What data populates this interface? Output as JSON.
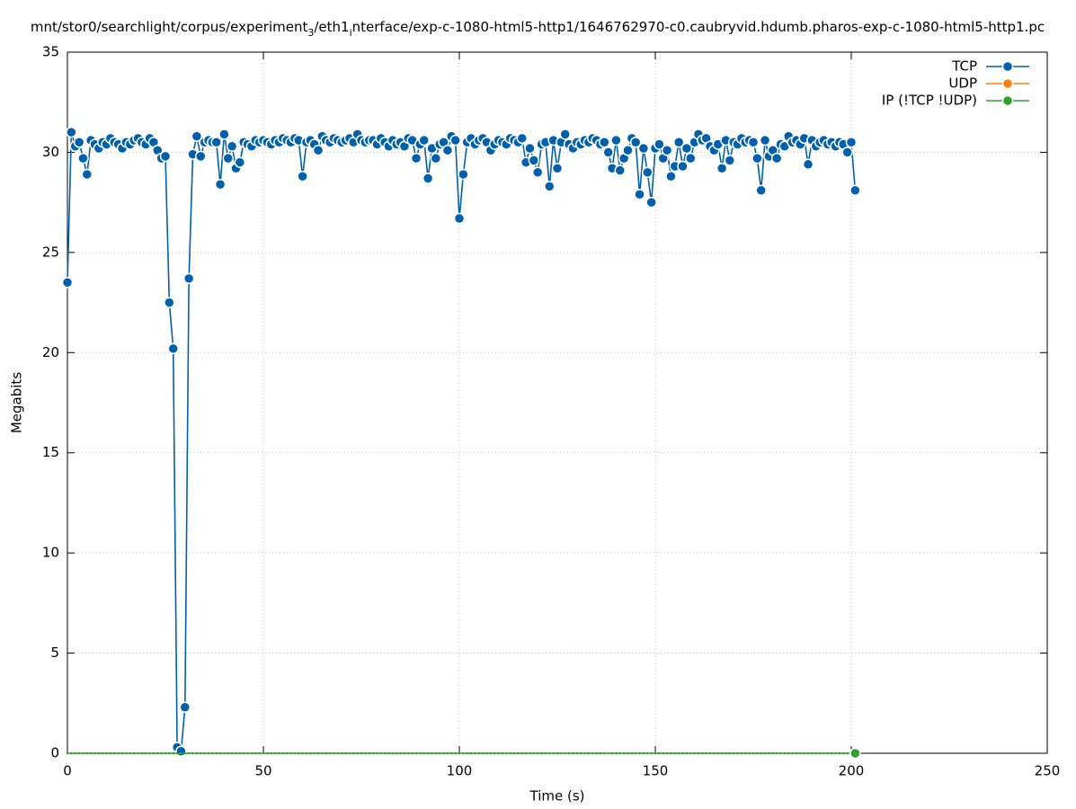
{
  "chart_data": {
    "type": "line",
    "title": [
      "mnt/stor0/searchlight/corpus/experiment",
      "3",
      "/eth1",
      "i",
      "nterface/exp-c-1080-html5-http1/1646762970-c0.caubryvid.hdumb.pharos-exp-c-1080-html5-http1.pc"
    ],
    "xlabel": "Time (s)",
    "ylabel": "Megabits",
    "xlim": [
      0,
      250
    ],
    "xticks": [
      0,
      50,
      100,
      150,
      200,
      250
    ],
    "ylim": [
      0,
      35
    ],
    "yticks": [
      0,
      5,
      10,
      15,
      20,
      25,
      30,
      35
    ],
    "grid": true,
    "legend": "top-right",
    "x": [
      0,
      1,
      2,
      3,
      4,
      5,
      6,
      7,
      8,
      9,
      10,
      11,
      12,
      13,
      14,
      15,
      16,
      17,
      18,
      19,
      20,
      21,
      22,
      23,
      24,
      25,
      26,
      27,
      28,
      29,
      30,
      31,
      32,
      33,
      34,
      35,
      36,
      37,
      38,
      39,
      40,
      41,
      42,
      43,
      44,
      45,
      46,
      47,
      48,
      49,
      50,
      51,
      52,
      53,
      54,
      55,
      56,
      57,
      58,
      59,
      60,
      61,
      62,
      63,
      64,
      65,
      66,
      67,
      68,
      69,
      70,
      71,
      72,
      73,
      74,
      75,
      76,
      77,
      78,
      79,
      80,
      81,
      82,
      83,
      84,
      85,
      86,
      87,
      88,
      89,
      90,
      91,
      92,
      93,
      94,
      95,
      96,
      97,
      98,
      99,
      100,
      101,
      102,
      103,
      104,
      105,
      106,
      107,
      108,
      109,
      110,
      111,
      112,
      113,
      114,
      115,
      116,
      117,
      118,
      119,
      120,
      121,
      122,
      123,
      124,
      125,
      126,
      127,
      128,
      129,
      130,
      131,
      132,
      133,
      134,
      135,
      136,
      137,
      138,
      139,
      140,
      141,
      142,
      143,
      144,
      145,
      146,
      147,
      148,
      149,
      150,
      151,
      152,
      153,
      154,
      155,
      156,
      157,
      158,
      159,
      160,
      161,
      162,
      163,
      164,
      165,
      166,
      167,
      168,
      169,
      170,
      171,
      172,
      173,
      174,
      175,
      176,
      177,
      178,
      179,
      180,
      181,
      182,
      183,
      184,
      185,
      186,
      187,
      188,
      189,
      190,
      191,
      192,
      193,
      194,
      195,
      196,
      197,
      198,
      199,
      200,
      201
    ],
    "series": [
      {
        "name": "TCP",
        "color": "#0060ad",
        "values": [
          23.5,
          31.0,
          30.3,
          30.5,
          29.7,
          28.9,
          30.6,
          30.4,
          30.2,
          30.5,
          30.4,
          30.7,
          30.5,
          30.4,
          30.2,
          30.5,
          30.4,
          30.6,
          30.7,
          30.5,
          30.4,
          30.7,
          30.5,
          30.1,
          29.7,
          29.8,
          22.5,
          20.2,
          0.3,
          0.1,
          2.3,
          23.7,
          29.9,
          30.8,
          29.8,
          30.5,
          30.6,
          30.5,
          30.5,
          28.4,
          30.9,
          29.7,
          30.3,
          29.2,
          29.5,
          30.5,
          30.4,
          30.3,
          30.6,
          30.5,
          30.6,
          30.5,
          30.4,
          30.6,
          30.5,
          30.7,
          30.6,
          30.5,
          30.7,
          30.6,
          28.8,
          30.5,
          30.6,
          30.4,
          30.1,
          30.8,
          30.6,
          30.5,
          30.7,
          30.6,
          30.5,
          30.6,
          30.7,
          30.5,
          30.9,
          30.6,
          30.5,
          30.6,
          30.6,
          30.4,
          30.7,
          30.5,
          30.3,
          30.6,
          30.4,
          30.5,
          30.3,
          30.7,
          30.6,
          29.7,
          30.4,
          30.6,
          28.7,
          30.2,
          29.7,
          30.4,
          30.5,
          30.1,
          30.8,
          30.6,
          26.7,
          28.9,
          30.5,
          30.7,
          30.4,
          30.6,
          30.7,
          30.5,
          30.1,
          30.4,
          30.6,
          30.5,
          30.4,
          30.7,
          30.6,
          30.5,
          30.7,
          29.5,
          30.2,
          29.6,
          29.0,
          30.4,
          30.5,
          28.3,
          30.6,
          29.2,
          30.5,
          30.9,
          30.4,
          30.2,
          30.5,
          30.4,
          30.6,
          30.5,
          30.7,
          30.6,
          30.4,
          30.5,
          30.0,
          29.2,
          30.6,
          29.1,
          29.7,
          30.1,
          30.7,
          30.5,
          27.9,
          30.2,
          29.0,
          27.5,
          30.2,
          30.4,
          29.7,
          30.1,
          28.8,
          29.3,
          30.5,
          29.3,
          30.2,
          29.7,
          30.5,
          30.9,
          30.6,
          30.7,
          30.3,
          30.1,
          30.4,
          29.2,
          30.6,
          29.6,
          30.5,
          30.4,
          30.7,
          30.5,
          30.6,
          30.5,
          29.7,
          28.1,
          30.6,
          29.8,
          30.1,
          29.7,
          30.4,
          30.3,
          30.8,
          30.5,
          30.6,
          30.4,
          30.7,
          29.4,
          30.6,
          30.3,
          30.5,
          30.6,
          30.4,
          30.5,
          30.3,
          30.5,
          30.4,
          30.0,
          30.5,
          28.1
        ]
      },
      {
        "name": "UDP",
        "color": "#ff7f0e",
        "values": [
          null,
          null,
          null,
          null,
          null,
          null,
          null,
          null,
          null,
          null,
          null,
          null,
          null,
          null,
          null,
          null,
          null,
          null,
          null,
          null,
          null,
          null,
          null,
          null,
          null,
          null,
          null,
          null,
          null,
          null,
          null,
          null,
          null,
          null,
          null,
          null,
          null,
          null,
          null,
          null,
          null,
          null,
          null,
          null,
          null,
          null,
          null,
          null,
          null,
          null,
          null,
          null,
          null,
          null,
          null,
          null,
          null,
          null,
          null,
          null,
          null,
          null,
          null,
          null,
          null,
          null,
          null,
          null,
          null,
          null,
          null,
          null,
          null,
          null,
          null,
          null,
          null,
          null,
          null,
          null,
          null,
          null,
          null,
          null,
          null,
          null,
          null,
          null,
          null,
          null,
          null,
          null,
          null,
          null,
          null,
          null,
          null,
          null,
          null,
          null,
          null,
          null,
          null,
          null,
          null,
          null,
          null,
          null,
          null,
          null,
          null,
          null,
          null,
          null,
          null,
          null,
          null,
          null,
          null,
          null,
          null,
          null,
          null,
          null,
          null,
          null,
          null,
          null,
          null,
          null,
          null,
          null,
          null,
          null,
          null,
          null,
          null,
          null,
          null,
          null,
          null,
          null,
          null,
          null,
          null,
          null,
          null,
          null,
          null,
          null,
          null,
          null,
          null,
          null,
          null,
          null,
          null,
          null,
          null,
          null,
          null,
          null,
          null,
          null,
          null,
          null,
          null,
          null,
          null,
          null,
          null,
          null,
          null,
          null,
          null,
          null,
          null,
          null,
          null,
          null,
          null,
          null,
          null,
          null,
          null,
          null,
          null,
          null,
          null,
          null,
          null,
          null,
          null,
          null,
          null,
          null,
          null,
          null,
          null,
          null,
          null,
          null
        ]
      },
      {
        "name": "IP (!TCP  !UDP)",
        "color": "#2ca02c",
        "values": [
          0,
          0,
          0,
          0,
          0,
          0,
          0,
          0,
          0,
          0,
          0,
          0,
          0,
          0,
          0,
          0,
          0,
          0,
          0,
          0,
          0,
          0,
          0,
          0,
          0,
          0,
          0,
          0,
          0,
          0,
          0,
          0,
          0,
          0,
          0,
          0,
          0,
          0,
          0,
          0,
          0,
          0,
          0,
          0,
          0,
          0,
          0,
          0,
          0,
          0,
          0,
          0,
          0,
          0,
          0,
          0,
          0,
          0,
          0,
          0,
          0,
          0,
          0,
          0,
          0,
          0,
          0,
          0,
          0,
          0,
          0,
          0,
          0,
          0,
          0,
          0,
          0,
          0,
          0,
          0,
          0,
          0,
          0,
          0,
          0,
          0,
          0,
          0,
          0,
          0,
          0,
          0,
          0,
          0,
          0,
          0,
          0,
          0,
          0,
          0,
          0,
          0,
          0,
          0,
          0,
          0,
          0,
          0,
          0,
          0,
          0,
          0,
          0,
          0,
          0,
          0,
          0,
          0,
          0,
          0,
          0,
          0,
          0,
          0,
          0,
          0,
          0,
          0,
          0,
          0,
          0,
          0,
          0,
          0,
          0,
          0,
          0,
          0,
          0,
          0,
          0,
          0,
          0,
          0,
          0,
          0,
          0,
          0,
          0,
          0,
          0,
          0,
          0,
          0,
          0,
          0,
          0,
          0,
          0,
          0,
          0,
          0,
          0,
          0,
          0,
          0,
          0,
          0,
          0,
          0,
          0,
          0,
          0,
          0,
          0,
          0,
          0,
          0,
          0,
          0,
          0,
          0,
          0,
          0,
          0,
          0,
          0,
          0,
          0,
          0,
          0,
          0,
          0,
          0,
          0,
          0,
          0,
          0,
          0,
          0,
          0,
          0
        ]
      }
    ]
  }
}
